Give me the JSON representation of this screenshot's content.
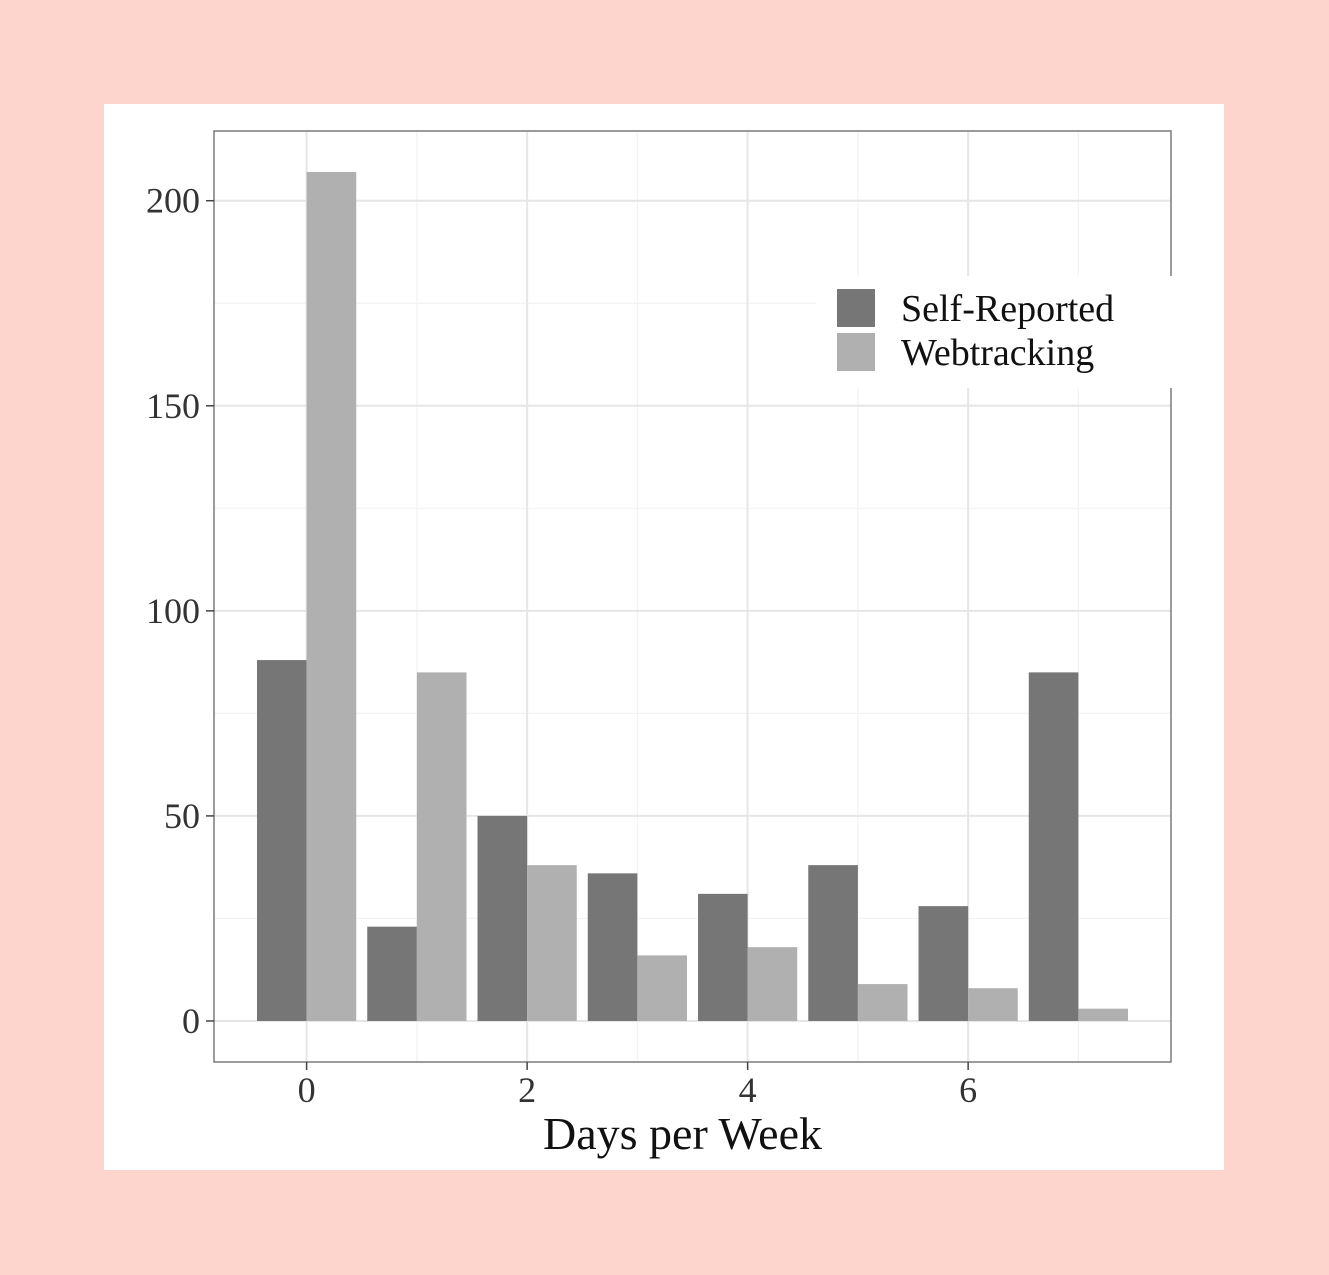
{
  "chart_data": {
    "type": "bar",
    "title": "",
    "xlabel": "Days per Week",
    "ylabel": "",
    "x": [
      0,
      1,
      2,
      3,
      4,
      5,
      6,
      7
    ],
    "x_ticks": [
      "0",
      "2",
      "4",
      "6"
    ],
    "y_ticks": [
      "0",
      "50",
      "100",
      "150",
      "200"
    ],
    "xlim": [
      -0.84,
      7.84
    ],
    "ylim": [
      -10,
      217
    ],
    "grid": true,
    "legend_position": "top-right",
    "series": [
      {
        "name": "Self-Reported",
        "color": "#767676",
        "values": [
          88,
          23,
          50,
          36,
          31,
          38,
          28,
          85
        ]
      },
      {
        "name": "Webtracking",
        "color": "#b0b0b0",
        "values": [
          207,
          85,
          38,
          16,
          18,
          9,
          8,
          3
        ]
      }
    ]
  }
}
